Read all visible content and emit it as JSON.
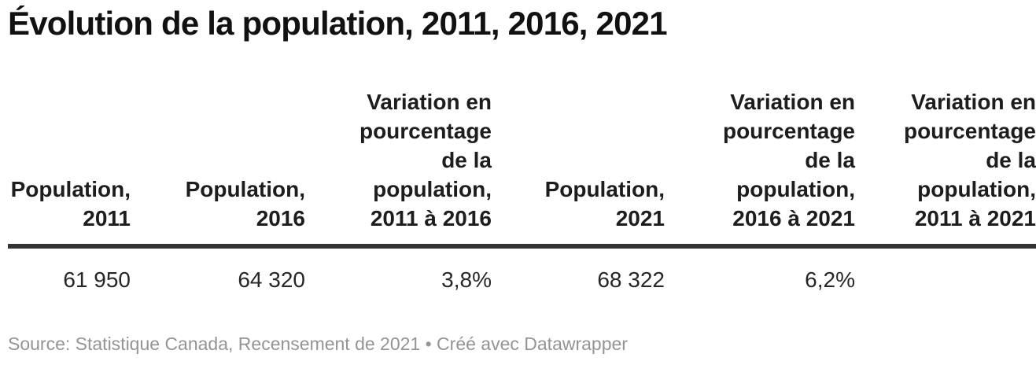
{
  "title": "Évolution de la population, 2011, 2016, 2021",
  "chart_data": {
    "type": "table",
    "title": "Évolution de la population, 2011, 2016, 2021",
    "columns": [
      "Population, 2011",
      "Population, 2016",
      "Variation en pourcentage de la population, 2011 à 2016",
      "Population, 2021",
      "Variation en pourcentage de la population, 2016 à 2021",
      "Variation en pourcentage de la population, 2011 à 2021"
    ],
    "rows": [
      [
        "61 950",
        "64 320",
        "3,8%",
        "68 322",
        "6,2%",
        ""
      ]
    ],
    "notes": "rightmost column clipped at viewport edge"
  },
  "table": {
    "columns": [
      {
        "label": "Population,\n2011"
      },
      {
        "label": "Population,\n2016"
      },
      {
        "label": "Variation en\npourcentage\nde la\npopulation,\n2011 à 2016"
      },
      {
        "label": "Population,\n2021"
      },
      {
        "label": "Variation en\npourcentage\nde la\npopulation,\n2016 à 2021"
      },
      {
        "label": "Variation en\npourcentage\nde la\npopulation,\n2011 à 2021"
      }
    ],
    "rows": [
      {
        "values": [
          "61 950",
          "64 320",
          "3,8%",
          "68 322",
          "6,2%",
          ""
        ]
      }
    ]
  },
  "footer": {
    "text": "Source: Statistique Canada, Recensement de 2021 • Créé avec Datawrapper"
  },
  "colors": {
    "background": "#ffffff",
    "title_text": "#111111",
    "header_text": "#1d1d1d",
    "body_text": "#262626",
    "footer_text": "#949494",
    "header_rule": "#333333"
  }
}
